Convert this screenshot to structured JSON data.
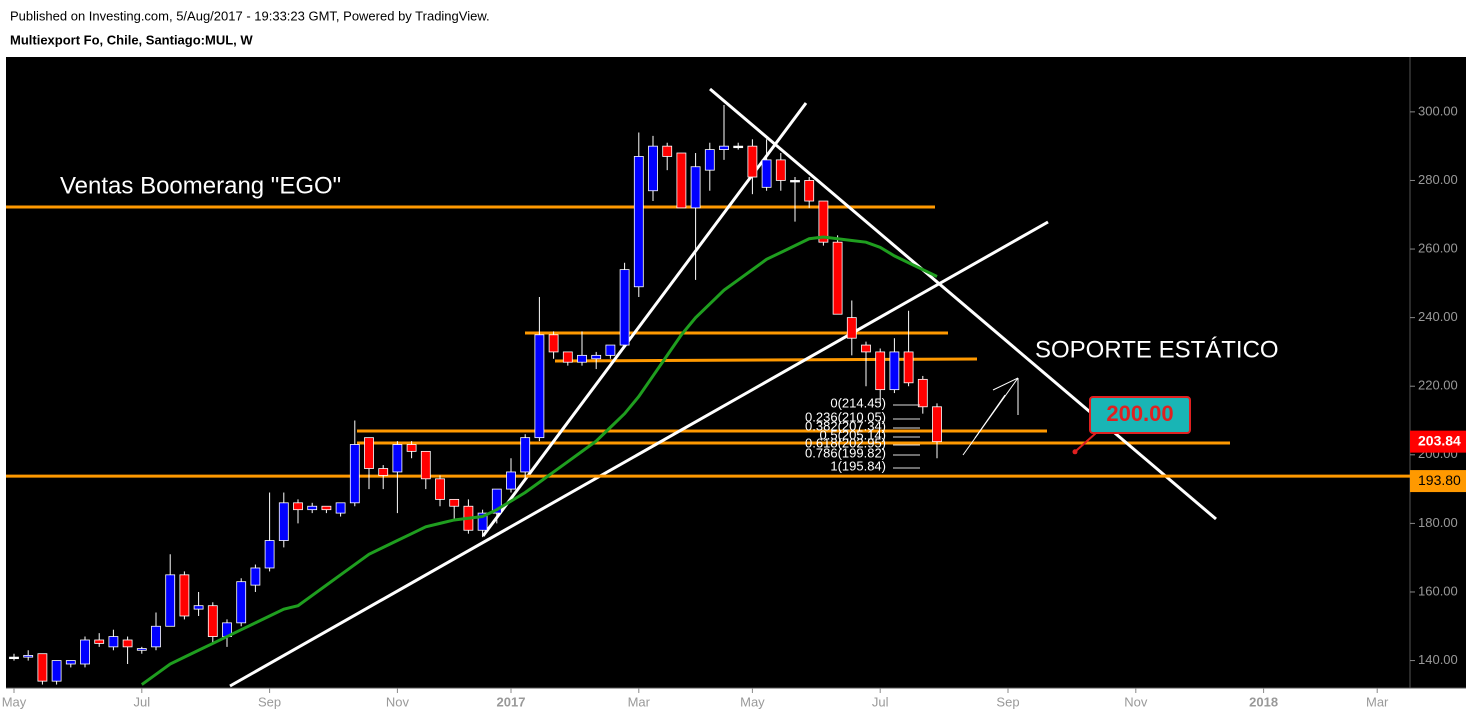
{
  "header": {
    "published": "Published on Investing.com, 5/Aug/2017 - 19:33:23 GMT, Powered by TradingView.",
    "symbol": "Multiexport Fo, Chile, Santiago:MUL, W"
  },
  "chart_data": {
    "type": "candlestick",
    "categories": [
      "May",
      null,
      null,
      null,
      null,
      null,
      null,
      null,
      null,
      "Jul",
      null,
      null,
      null,
      null,
      null,
      null,
      null,
      null,
      "Sep",
      null,
      null,
      null,
      null,
      null,
      null,
      null,
      null,
      "Nov",
      null,
      null,
      null,
      null,
      null,
      null,
      null,
      "2017",
      null,
      null,
      null,
      null,
      null,
      null,
      null,
      null,
      "Mar",
      null,
      null,
      null,
      null,
      null,
      null,
      null,
      "May",
      null,
      null,
      null,
      null,
      null,
      null,
      null,
      null,
      "Jul",
      null,
      null,
      null,
      null,
      null,
      null,
      null,
      null,
      "Sep",
      null,
      null,
      null,
      null,
      null,
      null,
      null,
      null,
      "Nov",
      null,
      null,
      null,
      null,
      null,
      null,
      null,
      null,
      "2018",
      null,
      null,
      null,
      null,
      null,
      null,
      null,
      "Mar",
      null,
      null
    ],
    "open": [
      141,
      141,
      142,
      134,
      139,
      139,
      146,
      144,
      146,
      143,
      144,
      150,
      165,
      155,
      156,
      147,
      151,
      162,
      167,
      175,
      186,
      184,
      185,
      183,
      186,
      205,
      196,
      195,
      203,
      201,
      193,
      187,
      185,
      178,
      183,
      190,
      195,
      205,
      235,
      230,
      227,
      228,
      229,
      232,
      249,
      277,
      290,
      288,
      272,
      283,
      289,
      290,
      290,
      278,
      286,
      280,
      280,
      274,
      262,
      240,
      232,
      230,
      219,
      230,
      222,
      214,
      null,
      null,
      null,
      null,
      null,
      null,
      null,
      null,
      null,
      null,
      null,
      null,
      null,
      null,
      null,
      null,
      null,
      null,
      null,
      null,
      null,
      null,
      null,
      null,
      null,
      null,
      null,
      null,
      null,
      null,
      null,
      null,
      null
    ],
    "high": [
      142,
      143,
      142,
      140,
      140,
      147,
      148,
      149,
      147,
      144,
      154,
      171,
      166,
      160,
      157,
      152,
      164,
      168,
      189,
      189,
      187,
      186,
      185,
      186,
      210,
      205,
      197,
      204,
      204,
      201,
      194,
      187,
      187,
      184,
      190,
      199,
      206,
      246,
      236,
      230,
      236,
      230,
      232,
      256,
      294,
      293,
      291,
      288,
      288,
      291,
      302,
      291,
      292,
      292,
      288,
      281,
      281,
      274,
      264,
      245,
      233,
      231,
      234,
      242,
      223,
      215,
      null,
      null,
      null,
      null,
      null,
      null,
      null,
      null,
      null,
      null,
      null,
      null,
      null,
      null,
      null,
      null,
      null,
      null,
      null,
      null,
      null,
      null,
      null,
      null,
      null,
      null,
      null,
      null,
      null,
      null,
      null,
      null,
      null
    ],
    "low": [
      140,
      140,
      133,
      133,
      138,
      138,
      144,
      143,
      139,
      142,
      143,
      150,
      152,
      153,
      145,
      144,
      150,
      160,
      166,
      173,
      180,
      183,
      183,
      182,
      185,
      190,
      190,
      183,
      199,
      190,
      185,
      181,
      177,
      176,
      180,
      189,
      193,
      204,
      228,
      226,
      226,
      225,
      228,
      232,
      246,
      274,
      283,
      272,
      251,
      277,
      286,
      289,
      276,
      277,
      277,
      268,
      272,
      261,
      241,
      229,
      220,
      215,
      218,
      220,
      212,
      199,
      null,
      null,
      null,
      null,
      null,
      null,
      null,
      null,
      null,
      null,
      null,
      null,
      null,
      null,
      null,
      null,
      null,
      null,
      null,
      null,
      null,
      null,
      null,
      null,
      null,
      null,
      null,
      null,
      null,
      null,
      null,
      null,
      null
    ],
    "close": [
      141,
      141.5,
      134,
      140,
      140,
      146,
      145,
      147,
      144,
      143.5,
      150,
      165,
      153,
      156,
      147,
      151,
      163,
      167,
      175,
      186,
      184,
      185,
      184,
      186,
      203,
      196,
      194,
      203,
      201,
      193,
      187,
      185,
      178,
      183,
      190,
      195,
      205,
      235,
      230,
      227,
      229,
      229,
      232,
      254,
      287,
      290,
      287,
      272,
      284,
      289,
      290,
      290,
      281,
      286,
      280,
      280,
      274,
      262,
      241,
      234,
      230,
      219,
      230,
      221,
      214,
      203.84,
      null,
      null,
      null,
      null,
      null,
      null,
      null,
      null,
      null,
      null,
      null,
      null,
      null,
      null,
      null,
      null,
      null,
      null,
      null,
      null,
      null,
      null,
      null,
      null,
      null,
      null,
      null,
      null,
      null,
      null,
      null,
      null,
      null
    ],
    "up_color": "#0000ff",
    "down_color": "#ff0000",
    "moving_average": {
      "color": "#1f9e1f",
      "values": [
        null,
        null,
        null,
        null,
        null,
        null,
        null,
        null,
        null,
        133,
        136,
        139,
        141,
        143,
        145,
        147,
        149,
        151,
        153,
        155,
        156,
        159,
        162,
        165,
        168,
        171,
        173,
        175,
        177,
        179,
        180,
        181,
        181.5,
        182,
        184,
        186.5,
        189,
        192,
        195,
        198,
        201,
        204,
        208,
        212,
        217,
        223,
        229,
        235,
        240,
        244,
        248,
        251,
        254,
        257,
        259,
        261,
        263,
        263.5,
        263,
        262.5,
        262,
        260.5,
        258,
        256,
        254,
        252,
        null,
        null,
        null,
        null,
        null,
        null,
        null,
        null,
        null,
        null,
        null,
        null,
        null,
        null,
        null,
        null,
        null,
        null,
        null,
        null,
        null,
        null,
        null,
        null,
        null,
        null,
        null,
        null,
        null,
        null,
        null,
        null,
        null
      ]
    },
    "ylim": [
      132,
      316
    ],
    "yticks": [
      {
        "value": 140,
        "label": "140.00"
      },
      {
        "value": 160,
        "label": "160.00"
      },
      {
        "value": 180,
        "label": "180.00"
      },
      {
        "value": 200,
        "label": "200.00"
      },
      {
        "value": 220,
        "label": "220.00"
      },
      {
        "value": 240,
        "label": "240.00"
      },
      {
        "value": 260,
        "label": "260.00"
      },
      {
        "value": 280,
        "label": "280.00"
      },
      {
        "value": 300,
        "label": "300.00"
      }
    ],
    "last_price": 203.84,
    "last_price_color": "#ff0000",
    "support": {
      "value": 193.8,
      "label": "193.80"
    },
    "support_color": "#ff9900",
    "target": {
      "value": 200,
      "label": "200.00"
    },
    "annotations": [
      "Ventas Boomerang \"EGO\"",
      "SOPORTE ESTÁTICO"
    ],
    "fib_labels": [
      "0(214.45)",
      "0.236(210.05)",
      "0.382(207.34)",
      "0.5(205.14)",
      "0.618(202.95)",
      "0.786(199.82)",
      "1(195.84)"
    ]
  }
}
